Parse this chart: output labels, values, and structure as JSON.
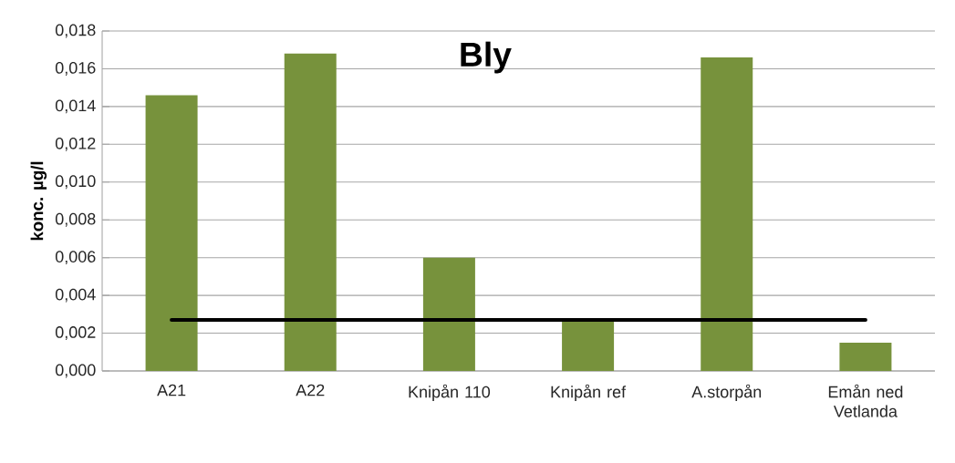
{
  "chart_data": {
    "type": "bar",
    "title": "Bly",
    "ylabel": "konc. µg/l",
    "categories": [
      "A21",
      "A22",
      "Knipån 110",
      "Knipån ref",
      "A.storpån",
      "Emån ned Vetlanda"
    ],
    "series": [
      {
        "color": "#77923c",
        "values": [
          0.0146,
          0.0168,
          0.006,
          0.0027,
          0.0166,
          0.0015
        ]
      },
      {
        "type": "line",
        "color": "#000000",
        "values": [
          0.0027,
          0.0027,
          0.0027,
          0.0027,
          0.0027,
          0.0027
        ],
        "marker": "none",
        "line_style": "solid"
      }
    ],
    "ylim": [
      0,
      0.018
    ],
    "yticks": [
      {
        "value": 0,
        "label": "0,000"
      },
      {
        "value": 0.002,
        "label": "0,002"
      },
      {
        "value": 0.004,
        "label": "0,004"
      },
      {
        "value": 0.006,
        "label": "0,006"
      },
      {
        "value": 0.008,
        "label": "0,008"
      },
      {
        "value": 0.01,
        "label": "0,010"
      },
      {
        "value": 0.012,
        "label": "0,012"
      },
      {
        "value": 0.014,
        "label": "0,014"
      },
      {
        "value": 0.016,
        "label": "0,016"
      },
      {
        "value": 0.018,
        "label": "0,018"
      }
    ],
    "grid": "y"
  }
}
